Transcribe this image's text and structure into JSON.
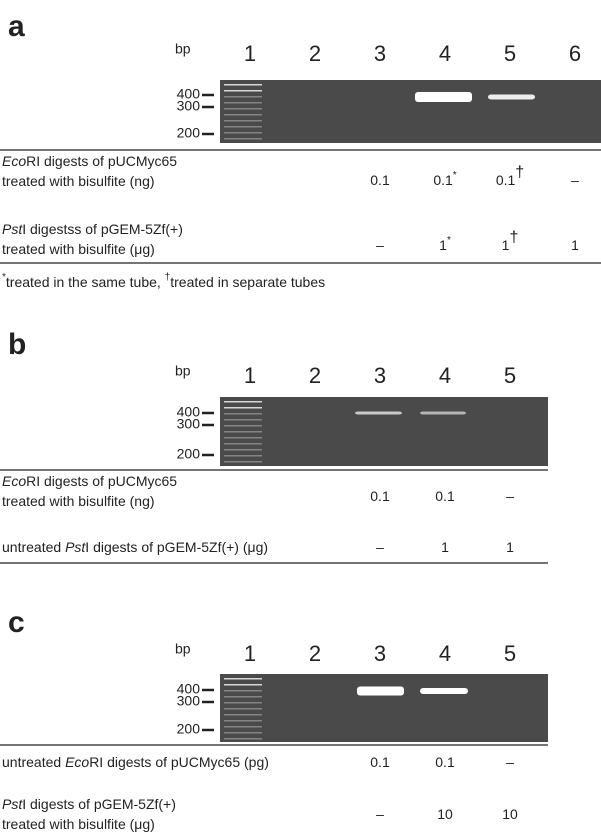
{
  "panels": [
    {
      "label": "a",
      "bp": "bp",
      "lanes": [
        "1",
        "2",
        "3",
        "4",
        "5",
        "6"
      ],
      "markers": [
        "400",
        "300",
        "200"
      ],
      "rows": [
        {
          "label": [
            [
              {
                "text": "Eco",
                "italic": true
              },
              {
                "text": "RI digests of pUCMyc65"
              }
            ],
            [
              {
                "text": "treated with bisulfite (ng)"
              }
            ]
          ],
          "cells": [
            null,
            null,
            {
              "text": "0.1"
            },
            {
              "text": "0.1",
              "sup": "*"
            },
            {
              "text": "0.1",
              "sup": "†"
            },
            {
              "text": "–"
            }
          ]
        },
        {
          "label": [
            [
              {
                "text": "Pst",
                "italic": true
              },
              {
                "text": "I digestss of pGEM-5Zf(+)"
              }
            ],
            [
              {
                "text": "treated with bisulfite (μg)"
              }
            ]
          ],
          "cells": [
            null,
            null,
            {
              "text": "–"
            },
            {
              "text": "1",
              "sup": "*"
            },
            {
              "text": "1",
              "sup": "†"
            },
            {
              "text": "1"
            }
          ]
        }
      ],
      "footnote": [
        {
          "sup": "*"
        },
        {
          "text": "treated in the same tube, "
        },
        {
          "sup": "†"
        },
        {
          "text": "treated in separate tubes"
        }
      ]
    },
    {
      "label": "b",
      "bp": "bp",
      "lanes": [
        "1",
        "2",
        "3",
        "4",
        "5"
      ],
      "markers": [
        "400",
        "300",
        "200"
      ],
      "rows": [
        {
          "label": [
            [
              {
                "text": "Eco",
                "italic": true
              },
              {
                "text": "RI digests of pUCMyc65"
              }
            ],
            [
              {
                "text": "treated with bisulfite (ng)"
              }
            ]
          ],
          "cells": [
            null,
            null,
            {
              "text": "0.1"
            },
            {
              "text": "0.1"
            },
            {
              "text": "–"
            }
          ]
        },
        {
          "label": [
            [
              {
                "text": "untreated "
              },
              {
                "text": "Pst",
                "italic": true
              },
              {
                "text": "I digests of pGEM-5Zf(+) (μg)"
              }
            ]
          ],
          "cells": [
            null,
            null,
            {
              "text": "–"
            },
            {
              "text": "1"
            },
            {
              "text": "1"
            }
          ]
        }
      ]
    },
    {
      "label": "c",
      "bp": "bp",
      "lanes": [
        "1",
        "2",
        "3",
        "4",
        "5"
      ],
      "markers": [
        "400",
        "300",
        "200"
      ],
      "rows": [
        {
          "label": [
            [
              {
                "text": "untreated "
              },
              {
                "text": "Eco",
                "italic": true
              },
              {
                "text": "RI digests of pUCMyc65 (pg)"
              }
            ]
          ],
          "cells": [
            null,
            null,
            {
              "text": "0.1"
            },
            {
              "text": "0.1"
            },
            {
              "text": "–"
            }
          ]
        },
        {
          "label": [
            [
              {
                "text": "Pst",
                "italic": true
              },
              {
                "text": "I digests of pGEM-5Zf(+)"
              }
            ],
            [
              {
                "text": "treated with bisulfite (μg)"
              }
            ]
          ],
          "cells": [
            null,
            null,
            {
              "text": "–"
            },
            {
              "text": "10"
            },
            {
              "text": "10"
            }
          ]
        }
      ]
    }
  ]
}
